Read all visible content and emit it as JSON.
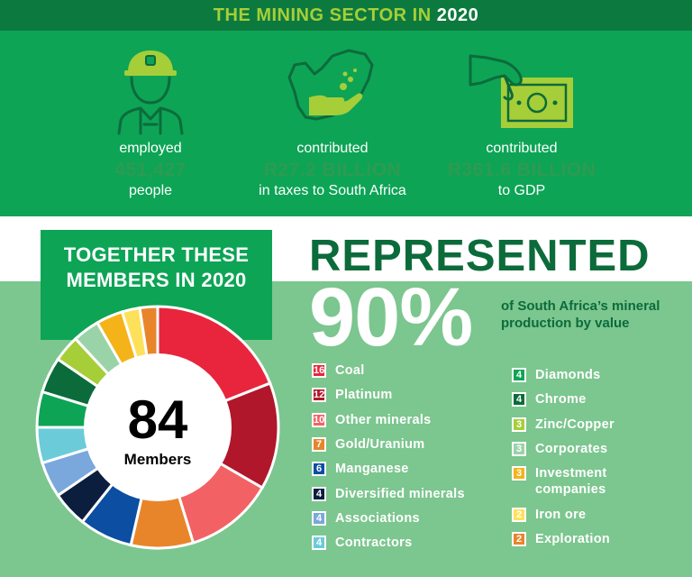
{
  "header": {
    "title_prefix": "THE MINING SECTOR IN ",
    "title_year": "2020"
  },
  "stats": [
    {
      "icon": "miner-icon",
      "line1": "employed",
      "value": "451,427",
      "line3": "people"
    },
    {
      "icon": "south-africa-map-hand-icon",
      "line1": "contributed",
      "value": "R27.2 BILLION",
      "line3": "in taxes to South Africa"
    },
    {
      "icon": "hand-banknote-icon",
      "line1": "contributed",
      "value": "R361.6 BILLION",
      "line3": "to GDP"
    }
  ],
  "together": {
    "line1": "TOGETHER THESE",
    "line2": "MEMBERS IN 2020"
  },
  "represented": "REPRESENTED",
  "percent": "90%",
  "percent_desc": "of South Africa’s mineral production by value",
  "colors": {
    "dark_green": "#0c7a3e",
    "green": "#0da456",
    "light_green": "#7cc68f",
    "lime": "#a6ce39"
  },
  "chart_data": {
    "type": "pie",
    "donut": true,
    "center_value": "84",
    "center_label": "Members",
    "slices": [
      {
        "name": "Coal",
        "value": 16,
        "color": "#e8253d",
        "text": "#ffffff"
      },
      {
        "name": "Platinum",
        "value": 12,
        "color": "#b0172b",
        "text": "#ffffff"
      },
      {
        "name": "Other minerals",
        "value": 10,
        "color": "#f26264",
        "text": "#ffffff"
      },
      {
        "name": "Gold/Uranium",
        "value": 7,
        "color": "#e8852b",
        "text": "#ffffff"
      },
      {
        "name": "Manganese",
        "value": 6,
        "color": "#0b4ea2",
        "text": "#ffffff"
      },
      {
        "name": "Diversified minerals",
        "value": 4,
        "color": "#0c1e3d",
        "text": "#ffffff"
      },
      {
        "name": "Associations",
        "value": 4,
        "color": "#7aa7dc",
        "text": "#ffffff"
      },
      {
        "name": "Contractors",
        "value": 4,
        "color": "#6ccbd8",
        "text": "#ffffff"
      },
      {
        "name": "Diamonds",
        "value": 4,
        "color": "#0da456",
        "text": "#ffffff"
      },
      {
        "name": "Chrome",
        "value": 4,
        "color": "#0c6b3a",
        "text": "#ffffff"
      },
      {
        "name": "Zinc/Copper",
        "value": 3,
        "color": "#a6ce39",
        "text": "#ffffff"
      },
      {
        "name": "Corporates",
        "value": 3,
        "color": "#9bd3a9",
        "text": "#ffffff"
      },
      {
        "name": "Investment companies",
        "value": 3,
        "color": "#f5b31a",
        "text": "#ffffff"
      },
      {
        "name": "Iron ore",
        "value": 2,
        "color": "#fde15a",
        "text": "#ffffff"
      },
      {
        "name": "Exploration",
        "value": 2,
        "color": "#e8852b",
        "text": "#ffffff"
      }
    ]
  }
}
